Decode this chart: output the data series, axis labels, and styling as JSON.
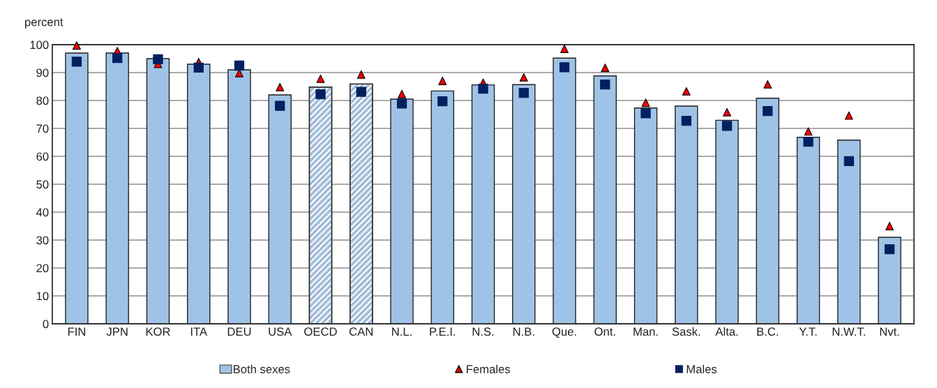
{
  "chart_data": {
    "type": "bar",
    "ylabel": "percent",
    "categories": [
      "FIN",
      "JPN",
      "KOR",
      "ITA",
      "DEU",
      "USA",
      "OECD",
      "CAN",
      "N.L.",
      "P.E.I.",
      "N.S.",
      "N.B.",
      "Que.",
      "Ont.",
      "Man.",
      "Sask.",
      "Alta.",
      "B.C.",
      "Y.T.",
      "N.W.T.",
      "Nvt."
    ],
    "series": [
      {
        "name": "Both sexes",
        "color": "#9fc3e6",
        "colors": [
          "#9fc3e6",
          "#9fc3e6",
          "#9fc3e6",
          "#9fc3e6",
          "#9fc3e6",
          "#9fc3e6",
          "#ffffff",
          "#ffffff",
          "#9fc3e6",
          "#9fc3e6",
          "#9fc3e6",
          "#9fc3e6",
          "#9fc3e6",
          "#9fc3e6",
          "#9fc3e6",
          "#9fc3e6",
          "#9fc3e6",
          "#9fc3e6",
          "#9fc3e6",
          "#9fc3e6",
          "#9fc3e6"
        ],
        "values": [
          97,
          97,
          95,
          93,
          91,
          82,
          84.8,
          85.9,
          80.5,
          83.4,
          85.6,
          85.7,
          95.2,
          88.8,
          77.3,
          78,
          72.9,
          80.8,
          66.8,
          65.8,
          31
        ]
      },
      {
        "name": "Females",
        "type": "scatter",
        "marker": "triangle",
        "color": "#ff0000",
        "values": [
          99.7,
          97.7,
          93.1,
          93.8,
          89.8,
          84.8,
          87.8,
          89.3,
          82.3,
          87,
          86.4,
          88.3,
          98.5,
          91.7,
          79.2,
          83.3,
          75.8,
          85.8,
          68.9,
          74.6,
          35
        ]
      },
      {
        "name": "Males",
        "type": "scatter",
        "marker": "square",
        "color": "#002060",
        "values": [
          93.9,
          95.2,
          94.8,
          91.8,
          92.5,
          78.1,
          82.2,
          83.1,
          78.9,
          79.7,
          84.2,
          82.7,
          91.9,
          85.7,
          75.4,
          72.7,
          70.9,
          76.2,
          65.2,
          58.3,
          26.7
        ]
      }
    ],
    "ylim": [
      0,
      100
    ],
    "yticks": [
      0,
      10,
      20,
      30,
      40,
      50,
      60,
      70,
      80,
      90,
      100
    ],
    "grid": "y",
    "legend": "bottom"
  }
}
